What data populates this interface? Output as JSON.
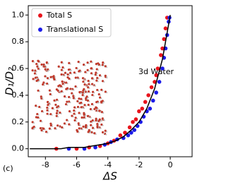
{
  "chart_data": {
    "type": "scatter",
    "x_label": "ΔS",
    "y_label": "D₁/D₂",
    "annotation": "3d Water",
    "panel_label": "(c)",
    "xlim": [
      -9.1,
      1.4
    ],
    "ylim": [
      -0.06,
      1.07
    ],
    "xticks": [
      -8,
      -6,
      -4,
      -2,
      0
    ],
    "yticks": [
      {
        "value": 0,
        "label": "0.0"
      },
      0.2,
      0.4,
      0.6,
      0.8,
      {
        "value": 1,
        "label": "1.0"
      }
    ],
    "legend": "upper left",
    "series": [
      {
        "name": "Total S",
        "color": "#e8141c",
        "x": [
          -7.3,
          -6.0,
          -5.2,
          -4.5,
          -4.0,
          -3.6,
          -3.2,
          -2.9,
          -2.6,
          -2.4,
          -2.2,
          -2.0,
          -1.8,
          -1.6,
          -1.4,
          -1.2,
          -1.0,
          -0.9,
          -0.8,
          -0.6,
          -0.5,
          -0.4,
          -0.3,
          -0.2
        ],
        "values": [
          0.0,
          0.0,
          0.01,
          0.02,
          0.04,
          0.06,
          0.1,
          0.12,
          0.16,
          0.2,
          0.22,
          0.28,
          0.3,
          0.35,
          0.4,
          0.46,
          0.5,
          0.55,
          0.6,
          0.7,
          0.75,
          0.82,
          0.9,
          0.98
        ]
      },
      {
        "name": "Translational S",
        "color": "#1c1ce8",
        "x": [
          -6.5,
          -5.5,
          -4.8,
          -4.2,
          -3.8,
          -3.4,
          -3.0,
          -2.7,
          -2.5,
          -2.3,
          -2.1,
          -1.9,
          -1.7,
          -1.5,
          -1.3,
          -1.1,
          -0.9,
          -0.7,
          -0.5,
          -0.4,
          -0.3,
          -0.2,
          -0.1,
          -0.05
        ],
        "values": [
          0.0,
          0.0,
          0.01,
          0.03,
          0.05,
          0.07,
          0.08,
          0.1,
          0.12,
          0.14,
          0.17,
          0.2,
          0.24,
          0.28,
          0.3,
          0.36,
          0.42,
          0.5,
          0.6,
          0.68,
          0.75,
          0.85,
          0.95,
          0.98
        ]
      }
    ],
    "fit_line": {
      "color": "#000000",
      "x": [
        -9,
        -8.5,
        -8,
        -7.5,
        -7,
        -6.5,
        -6,
        -5.5,
        -5,
        -4.5,
        -4,
        -3.5,
        -3,
        -2.5,
        -2,
        -1.5,
        -1,
        -0.5,
        0
      ],
      "values": [
        0,
        0,
        0,
        0,
        0,
        0.01,
        0.01,
        0.01,
        0.02,
        0.03,
        0.04,
        0.06,
        0.09,
        0.14,
        0.2,
        0.3,
        0.45,
        0.67,
        1.0
      ]
    }
  }
}
